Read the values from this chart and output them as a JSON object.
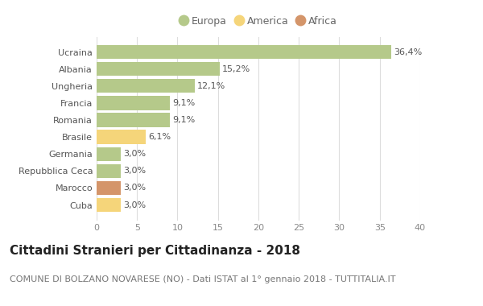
{
  "categories": [
    "Cuba",
    "Marocco",
    "Repubblica Ceca",
    "Germania",
    "Brasile",
    "Romania",
    "Francia",
    "Ungheria",
    "Albania",
    "Ucraina"
  ],
  "values": [
    3.0,
    3.0,
    3.0,
    3.0,
    6.1,
    9.1,
    9.1,
    12.1,
    15.2,
    36.4
  ],
  "labels": [
    "3,0%",
    "3,0%",
    "3,0%",
    "3,0%",
    "6,1%",
    "9,1%",
    "9,1%",
    "12,1%",
    "15,2%",
    "36,4%"
  ],
  "colors": [
    "#f5d57a",
    "#d4956a",
    "#b5c98a",
    "#b5c98a",
    "#f5d57a",
    "#b5c98a",
    "#b5c98a",
    "#b5c98a",
    "#b5c98a",
    "#b5c98a"
  ],
  "legend_items": [
    {
      "label": "Europa",
      "color": "#b5c98a"
    },
    {
      "label": "America",
      "color": "#f5d57a"
    },
    {
      "label": "Africa",
      "color": "#d4956a"
    }
  ],
  "xlim": [
    0,
    40
  ],
  "xticks": [
    0,
    5,
    10,
    15,
    20,
    25,
    30,
    35,
    40
  ],
  "title": "Cittadini Stranieri per Cittadinanza - 2018",
  "subtitle": "COMUNE DI BOLZANO NOVARESE (NO) - Dati ISTAT al 1° gennaio 2018 - TUTTITALIA.IT",
  "background_color": "#ffffff",
  "grid_color": "#dddddd",
  "bar_height": 0.82,
  "title_fontsize": 11,
  "subtitle_fontsize": 8,
  "label_fontsize": 8,
  "tick_fontsize": 8
}
